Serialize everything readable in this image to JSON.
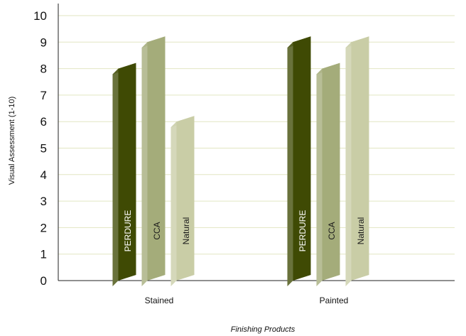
{
  "chart_data": {
    "type": "bar",
    "categories": [
      "Stained",
      "Painted"
    ],
    "series": [
      {
        "name": "PERDURE",
        "values": [
          8,
          9
        ],
        "color": "#3f4a04",
        "label_color": "#ffffff"
      },
      {
        "name": "CCA",
        "values": [
          9,
          8
        ],
        "color": "#a4ac7a",
        "label_color": "#1a1a1a"
      },
      {
        "name": "Natural",
        "values": [
          6,
          9
        ],
        "color": "#c9cda6",
        "label_color": "#1a1a1a"
      }
    ],
    "title": "",
    "xlabel": "Finishing Products",
    "ylabel": "Visual Assessment (1-10)",
    "ylim": [
      0,
      10
    ],
    "yticks": [
      0,
      1,
      2,
      3,
      4,
      5,
      6,
      7,
      8,
      9,
      10
    ],
    "grid": true,
    "gridline_color": "#e2e6c2",
    "legend": "none (series names printed inside bars)"
  }
}
